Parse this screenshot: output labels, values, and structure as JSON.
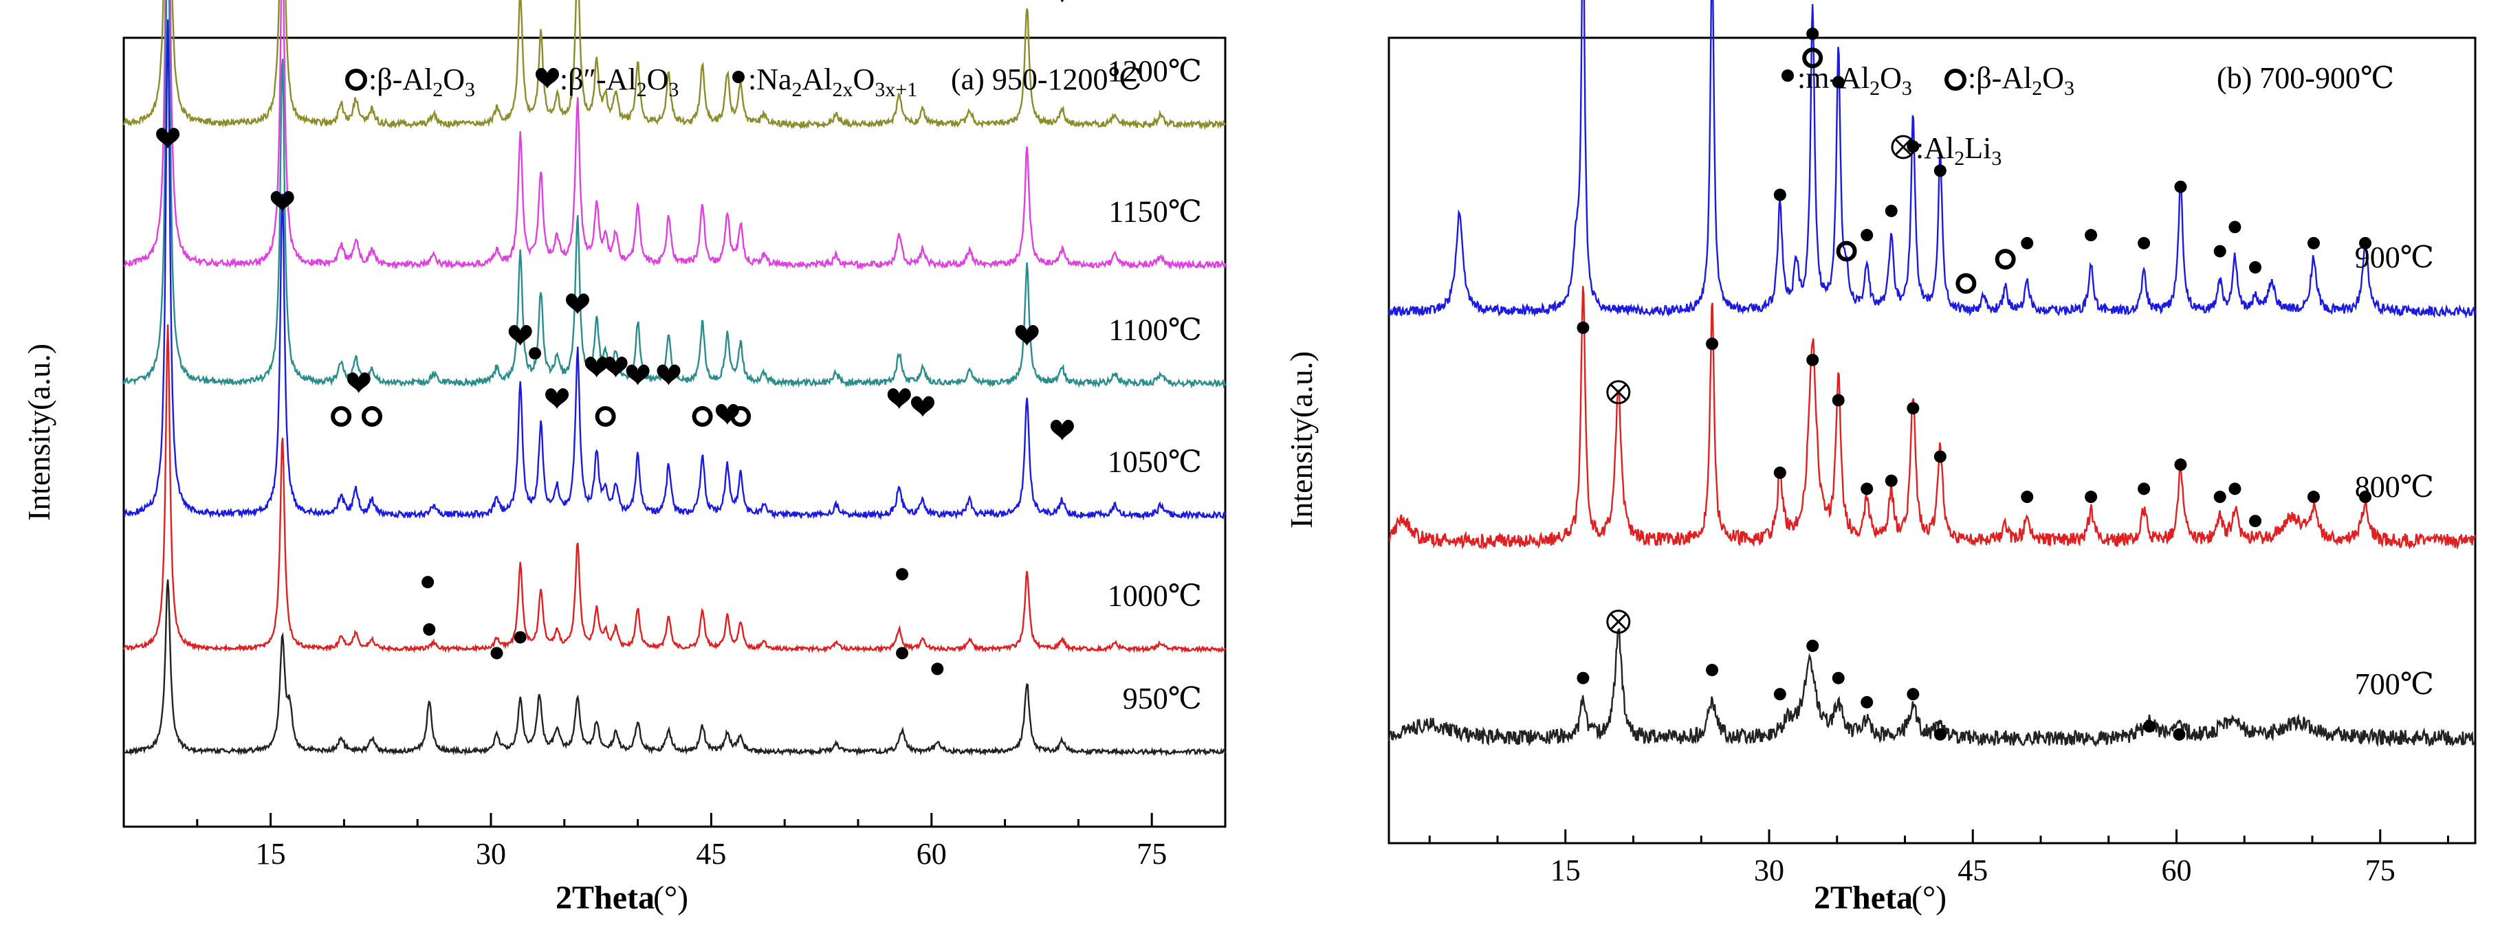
{
  "chart_data": [
    {
      "id": "a",
      "type": "line",
      "panel_label": "(a) 950-1200℃",
      "xlabel": "2Theta",
      "xunit": "(°)",
      "ylabel": "Intensity(a.u.)",
      "xlim": [
        5,
        80
      ],
      "xticks": [
        15,
        30,
        45,
        60,
        75
      ],
      "legend": [
        {
          "symbol": "circle",
          "label": ":β-Al2O3"
        },
        {
          "symbol": "heart",
          "label": ":β″-Al2O3"
        },
        {
          "symbol": "dot",
          "label": ":Na2Al2xO3x+1"
        }
      ],
      "series": [
        {
          "name": "1200℃",
          "color": "#8c8c2a",
          "baseline": 0.89,
          "scale": 0.95,
          "profile": "beta",
          "markers": [
            {
              "x": 8.0,
              "s": "heart",
              "h": 1.05
            },
            {
              "x": 15.8,
              "s": "heart",
              "h": 0.66
            },
            {
              "x": 19.8,
              "s": "circle",
              "h": 0.18
            },
            {
              "x": 21.0,
              "s": "heart",
              "h": 0.24
            },
            {
              "x": 21.9,
              "s": "circle",
              "h": 0.18
            },
            {
              "x": 32.0,
              "s": "heart",
              "h": 0.34
            },
            {
              "x": 33.4,
              "s": "circle",
              "h": 0.32
            },
            {
              "x": 34.5,
              "s": "heart",
              "h": 0.18
            },
            {
              "x": 35.9,
              "s": "heart",
              "h": 0.42
            },
            {
              "x": 37.2,
              "s": "heart",
              "h": 0.28
            },
            {
              "x": 37.8,
              "s": "circle",
              "h": 0.15
            },
            {
              "x": 38.5,
              "s": "heart",
              "h": 0.29
            },
            {
              "x": 40.0,
              "s": "heart",
              "h": 0.27
            },
            {
              "x": 42.1,
              "s": "heart",
              "h": 0.27
            },
            {
              "x": 44.4,
              "s": "circle",
              "h": 0.24
            },
            {
              "x": 46.1,
              "s": "heart",
              "h": 0.24
            },
            {
              "x": 47.0,
              "s": "circle",
              "h": 0.18
            },
            {
              "x": 57.8,
              "s": "heart",
              "h": 0.22
            },
            {
              "x": 59.4,
              "s": "heart",
              "h": 0.19
            },
            {
              "x": 66.5,
              "s": "heart",
              "h": 0.32
            },
            {
              "x": 68.9,
              "s": "heart",
              "h": 0.14
            }
          ]
        },
        {
          "name": "1150℃",
          "color": "#e040e0",
          "baseline": 0.712,
          "scale": 0.95,
          "profile": "beta",
          "markers": []
        },
        {
          "name": "1100℃",
          "color": "#2a8c8c",
          "baseline": 0.562,
          "scale": 0.95,
          "profile": "beta",
          "markers": []
        },
        {
          "name": "1050℃",
          "color": "#1a1ae0",
          "baseline": 0.395,
          "scale": 0.95,
          "profile": "beta",
          "markers": [
            {
              "x": 8.0,
              "s": "heart",
              "h": 0.45
            },
            {
              "x": 15.8,
              "s": "heart",
              "h": 0.37
            },
            {
              "x": 19.8,
              "s": "circle",
              "h": 0.1
            },
            {
              "x": 21.0,
              "s": "heart",
              "h": 0.14
            },
            {
              "x": 21.9,
              "s": "circle",
              "h": 0.1
            },
            {
              "x": 32.0,
              "s": "heart",
              "h": 0.2
            },
            {
              "x": 33.0,
              "s": "dot",
              "h": 0.18
            },
            {
              "x": 34.5,
              "s": "heart",
              "h": 0.12
            },
            {
              "x": 35.9,
              "s": "heart",
              "h": 0.24
            },
            {
              "x": 37.2,
              "s": "heart",
              "h": 0.16
            },
            {
              "x": 37.8,
              "s": "circle",
              "h": 0.1
            },
            {
              "x": 38.5,
              "s": "heart",
              "h": 0.16
            },
            {
              "x": 40.0,
              "s": "heart",
              "h": 0.15
            },
            {
              "x": 42.1,
              "s": "heart",
              "h": 0.15
            },
            {
              "x": 44.4,
              "s": "circle",
              "h": 0.1
            },
            {
              "x": 46.1,
              "s": "heart",
              "h": 0.1
            },
            {
              "x": 47.0,
              "s": "circle",
              "h": 0.1
            },
            {
              "x": 57.8,
              "s": "heart",
              "h": 0.12
            },
            {
              "x": 59.4,
              "s": "heart",
              "h": 0.11
            },
            {
              "x": 66.5,
              "s": "heart",
              "h": 0.2
            },
            {
              "x": 68.9,
              "s": "heart",
              "h": 0.08
            }
          ]
        },
        {
          "name": "1000℃",
          "color": "#e02020",
          "baseline": 0.225,
          "scale": 0.62,
          "profile": "beta",
          "markers": [
            {
              "x": 25.7,
              "s": "dot",
              "h": 0.06
            },
            {
              "x": 58.0,
              "s": "dot",
              "h": 0.07
            }
          ]
        },
        {
          "name": "950℃",
          "color": "#222222",
          "baseline": 0.095,
          "scale": 0.35,
          "profile": "beta950",
          "markers": [
            {
              "x": 25.8,
              "s": "dot",
              "h": 0.13
            },
            {
              "x": 30.4,
              "s": "dot",
              "h": 0.1
            },
            {
              "x": 32.0,
              "s": "dot",
              "h": 0.12
            },
            {
              "x": 58.0,
              "s": "dot",
              "h": 0.1
            },
            {
              "x": 60.4,
              "s": "dot",
              "h": 0.08
            }
          ]
        }
      ]
    },
    {
      "id": "b",
      "type": "line",
      "panel_label": "(b) 700-900℃",
      "xlabel": "2Theta",
      "xunit": "(°)",
      "ylabel": "Intensity(a.u.)",
      "xlim": [
        2,
        82
      ],
      "xticks": [
        15,
        30,
        45,
        60,
        75
      ],
      "legend": [
        {
          "symbol": "dot",
          "label": ":m-Al2O3"
        },
        {
          "symbol": "circle",
          "label": ":β-Al2O3"
        },
        {
          "symbol": "otimes",
          "label": ":Al2Li3"
        }
      ],
      "series": [
        {
          "name": "900℃",
          "color": "#1a1ae0",
          "baseline": 0.66,
          "scale": 1.0,
          "profile": "m900",
          "markers": [
            {
              "x": 16.3,
              "s": "dot",
              "h": 0.39
            },
            {
              "x": 25.8,
              "s": "dot",
              "h": 0.37
            },
            {
              "x": 30.8,
              "s": "dot",
              "h": 0.12
            },
            {
              "x": 33.2,
              "s": "dot",
              "h": 0.32
            },
            {
              "x": 33.2,
              "s": "circle",
              "h": 0.29
            },
            {
              "x": 35.1,
              "s": "dot",
              "h": 0.26
            },
            {
              "x": 35.7,
              "s": "circle",
              "h": 0.05
            },
            {
              "x": 37.2,
              "s": "dot",
              "h": 0.07
            },
            {
              "x": 39.0,
              "s": "dot",
              "h": 0.1
            },
            {
              "x": 40.6,
              "s": "dot",
              "h": 0.18
            },
            {
              "x": 42.6,
              "s": "dot",
              "h": 0.15
            },
            {
              "x": 44.5,
              "s": "circle",
              "h": 0.01
            },
            {
              "x": 47.4,
              "s": "circle",
              "h": 0.04
            },
            {
              "x": 49.0,
              "s": "dot",
              "h": 0.06
            },
            {
              "x": 53.7,
              "s": "dot",
              "h": 0.07
            },
            {
              "x": 57.6,
              "s": "dot",
              "h": 0.06
            },
            {
              "x": 60.3,
              "s": "dot",
              "h": 0.13
            },
            {
              "x": 63.2,
              "s": "dot",
              "h": 0.05
            },
            {
              "x": 64.3,
              "s": "dot",
              "h": 0.08
            },
            {
              "x": 65.8,
              "s": "dot",
              "h": 0.03
            },
            {
              "x": 70.1,
              "s": "dot",
              "h": 0.06
            },
            {
              "x": 73.9,
              "s": "dot",
              "h": 0.06
            }
          ]
        },
        {
          "name": "800℃",
          "color": "#e02020",
          "baseline": 0.375,
          "scale": 1.0,
          "profile": "m800",
          "markers": [
            {
              "x": 16.3,
              "s": "dot",
              "h": 0.24
            },
            {
              "x": 18.9,
              "s": "otimes",
              "h": 0.16
            },
            {
              "x": 25.8,
              "s": "dot",
              "h": 0.22
            },
            {
              "x": 30.8,
              "s": "dot",
              "h": 0.06
            },
            {
              "x": 33.2,
              "s": "dot",
              "h": 0.2
            },
            {
              "x": 35.1,
              "s": "dot",
              "h": 0.15
            },
            {
              "x": 37.2,
              "s": "dot",
              "h": 0.04
            },
            {
              "x": 39.0,
              "s": "dot",
              "h": 0.05
            },
            {
              "x": 40.6,
              "s": "dot",
              "h": 0.14
            },
            {
              "x": 42.6,
              "s": "dot",
              "h": 0.08
            },
            {
              "x": 49.0,
              "s": "dot",
              "h": 0.03
            },
            {
              "x": 53.7,
              "s": "dot",
              "h": 0.03
            },
            {
              "x": 57.6,
              "s": "dot",
              "h": 0.04
            },
            {
              "x": 60.3,
              "s": "dot",
              "h": 0.07
            },
            {
              "x": 63.2,
              "s": "dot",
              "h": 0.03
            },
            {
              "x": 64.3,
              "s": "dot",
              "h": 0.04
            },
            {
              "x": 65.8,
              "s": "dot",
              "h": 0.0
            },
            {
              "x": 70.1,
              "s": "dot",
              "h": 0.03
            },
            {
              "x": 73.9,
              "s": "dot",
              "h": 0.03
            }
          ]
        },
        {
          "name": "700℃",
          "color": "#222222",
          "baseline": 0.13,
          "scale": 1.0,
          "profile": "m700",
          "markers": [
            {
              "x": 16.3,
              "s": "dot",
              "h": 0.05
            },
            {
              "x": 18.9,
              "s": "otimes",
              "h": 0.12
            },
            {
              "x": 25.8,
              "s": "dot",
              "h": 0.06
            },
            {
              "x": 30.8,
              "s": "dot",
              "h": 0.03
            },
            {
              "x": 33.2,
              "s": "dot",
              "h": 0.09
            },
            {
              "x": 35.1,
              "s": "dot",
              "h": 0.05
            },
            {
              "x": 37.2,
              "s": "dot",
              "h": 0.02
            },
            {
              "x": 40.6,
              "s": "dot",
              "h": 0.03
            },
            {
              "x": 42.6,
              "s": "dot",
              "h": -0.02
            },
            {
              "x": 58.0,
              "s": "dot",
              "h": -0.01
            },
            {
              "x": 60.2,
              "s": "dot",
              "h": -0.02
            }
          ]
        }
      ]
    }
  ]
}
